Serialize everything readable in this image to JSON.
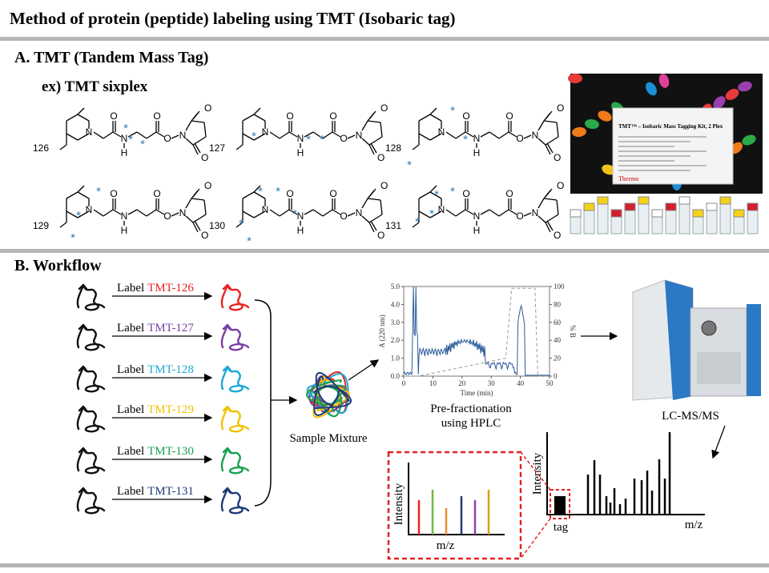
{
  "header": {
    "title": "Method of protein (peptide) labeling using TMT (Isobaric tag)"
  },
  "section_a": {
    "heading": "A. TMT (Tandem Mass Tag)",
    "subheading": "ex) TMT sixplex",
    "atoms": {
      "nitrogen": "N",
      "oxygen": "O",
      "hydrogen": "H",
      "isotope_mark": "*"
    },
    "structures": [
      {
        "label": "126"
      },
      {
        "label": "127"
      },
      {
        "label": "128"
      },
      {
        "label": "129"
      },
      {
        "label": "130"
      },
      {
        "label": "131"
      }
    ],
    "product": {
      "brand": "Thermo",
      "name": "TMT™ – Isobaric Mass Tagging Kit, 2 Plex"
    }
  },
  "section_b": {
    "heading": "B. Workflow",
    "labels": [
      {
        "prefix": "Label",
        "tag": "TMT-126",
        "color": "#e8231f"
      },
      {
        "prefix": "Label",
        "tag": "TMT-127",
        "color": "#7b3fa0"
      },
      {
        "prefix": "Label",
        "tag": "TMT-128",
        "color": "#1ba8d8"
      },
      {
        "prefix": "Label",
        "tag": "TMT-129",
        "color": "#f2c200"
      },
      {
        "prefix": "Label",
        "tag": "TMT-130",
        "color": "#1aa050"
      },
      {
        "prefix": "Label",
        "tag": "TMT-131",
        "color": "#1f3a78"
      }
    ],
    "mixture_label": "Sample Mixture",
    "hplc": {
      "y_label": "A (220 nm)",
      "y2_label": "% B",
      "x_label": "Time (min)",
      "ylim": [
        0,
        5
      ],
      "y2lim": [
        0,
        100
      ],
      "xlim": [
        0,
        50
      ],
      "yticks": [
        {
          "value": 0,
          "label": "0.0"
        },
        {
          "value": 1,
          "label": "1.0"
        },
        {
          "value": 2,
          "label": "2.0"
        },
        {
          "value": 3,
          "label": "3.0"
        },
        {
          "value": 4,
          "label": "4.0"
        },
        {
          "value": 5,
          "label": "5.0"
        }
      ],
      "xticks": [
        0,
        10,
        20,
        30,
        40,
        50
      ],
      "y2ticks": [
        0,
        20,
        40,
        60,
        80,
        100
      ],
      "caption": [
        "Pre-fractionation",
        "using HPLC"
      ]
    },
    "instrument_label": "LC-MS/MS",
    "spectrum": {
      "y_label": "Intensity",
      "x_label": "m/z",
      "tag_label": "tag"
    },
    "reporter_zoom": {
      "y_label": "Intensity",
      "x_label": "m/z"
    }
  }
}
